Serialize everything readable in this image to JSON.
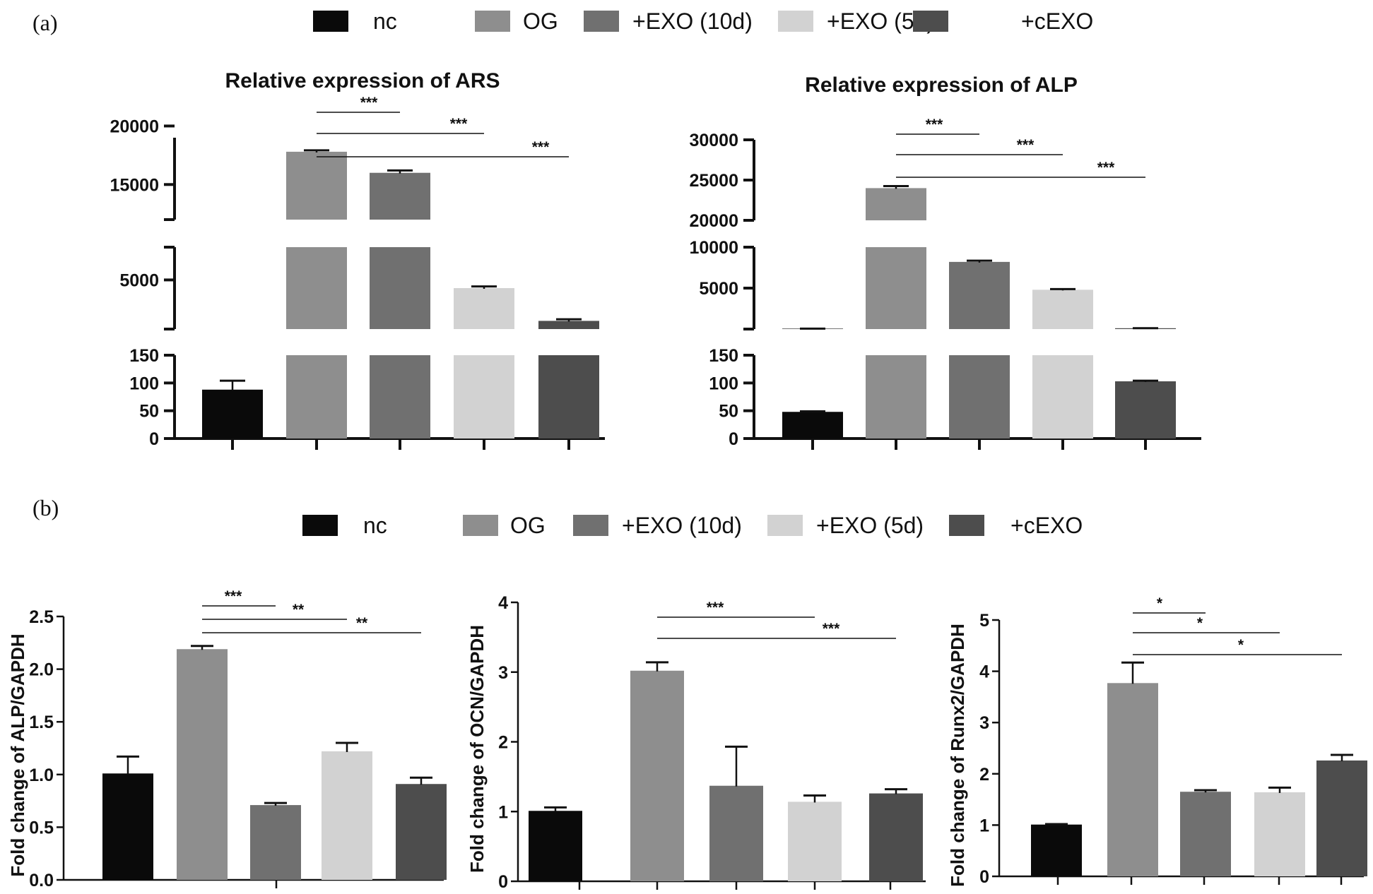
{
  "figure": {
    "panel_labels": [
      "(a)",
      "(b)"
    ],
    "legend_labels": [
      "nc",
      "OG",
      "+EXO (10d)",
      "+EXO (5d)",
      "+cEXO"
    ],
    "group_colors": [
      "#0a0a0a",
      "#8e8e8e",
      "#707070",
      "#d2d2d2",
      "#4d4d4d"
    ]
  },
  "chart_data": [
    {
      "type": "bar",
      "panel": "(a)",
      "title": "Relative expression of ARS",
      "xlabel": "",
      "ylabel": "",
      "broken_axis": true,
      "y_segments": [
        {
          "range": [
            0,
            150
          ],
          "ticks": [
            0,
            50,
            100,
            150
          ]
        },
        {
          "range": [
            2000,
            7000
          ],
          "ticks": [
            5000
          ]
        },
        {
          "range": [
            12000,
            19000
          ],
          "ticks": [
            15000,
            20000
          ]
        }
      ],
      "categories": [
        "nc",
        "OG",
        "+EXO (10d)",
        "+EXO (5d)",
        "+cEXO"
      ],
      "values": [
        88,
        17800,
        16000,
        4500,
        2500
      ],
      "errors": [
        16,
        120,
        200,
        100,
        100
      ],
      "significance": [
        {
          "from": "OG",
          "to": "+EXO (10d)",
          "label": "***"
        },
        {
          "from": "OG",
          "to": "+EXO (5d)",
          "label": "***"
        },
        {
          "from": "OG",
          "to": "+cEXO",
          "label": "***"
        }
      ]
    },
    {
      "type": "bar",
      "panel": "(a)",
      "title": "Relative expression of ALP",
      "xlabel": "",
      "ylabel": "",
      "broken_axis": true,
      "y_segments": [
        {
          "range": [
            0,
            150
          ],
          "ticks": [
            0,
            50,
            100,
            150
          ]
        },
        {
          "range": [
            0,
            10000
          ],
          "ticks": [
            5000,
            10000
          ]
        },
        {
          "range": [
            20000,
            30000
          ],
          "ticks": [
            20000,
            25000,
            30000
          ]
        }
      ],
      "categories": [
        "nc",
        "OG",
        "+EXO (10d)",
        "+EXO (5d)",
        "+cEXO"
      ],
      "values": [
        48,
        24000,
        8200,
        4800,
        103
      ],
      "errors": [
        1,
        250,
        150,
        80,
        1
      ],
      "significance": [
        {
          "from": "OG",
          "to": "+EXO (10d)",
          "label": "***"
        },
        {
          "from": "OG",
          "to": "+EXO (5d)",
          "label": "***"
        },
        {
          "from": "OG",
          "to": "+cEXO",
          "label": "***"
        }
      ]
    },
    {
      "type": "bar",
      "panel": "(b)",
      "title": "",
      "xlabel": "",
      "ylabel": "Fold change of ALP/GAPDH",
      "ylim": [
        0,
        2.5
      ],
      "yticks": [
        "0.0",
        "0.5",
        "1.0",
        "1.5",
        "2.0",
        "2.5"
      ],
      "categories": [
        "nc",
        "OG",
        "+EXO (10d)",
        "+EXO (5d)",
        "+cEXO"
      ],
      "values": [
        1.01,
        2.19,
        0.71,
        1.22,
        0.91
      ],
      "errors": [
        0.16,
        0.03,
        0.02,
        0.08,
        0.06
      ],
      "significance": [
        {
          "from": "OG",
          "to": "+EXO (10d)",
          "label": "***"
        },
        {
          "from": "OG",
          "to": "+EXO (5d)",
          "label": "**"
        },
        {
          "from": "OG",
          "to": "+cEXO",
          "label": "**"
        }
      ]
    },
    {
      "type": "bar",
      "panel": "(b)",
      "title": "",
      "xlabel": "",
      "ylabel": "Fold change of OCN/GAPDH",
      "ylim": [
        0,
        4
      ],
      "yticks": [
        "0",
        "1",
        "2",
        "3",
        "4"
      ],
      "categories": [
        "nc",
        "OG",
        "+EXO (10d)",
        "+EXO (5d)",
        "+cEXO"
      ],
      "values": [
        1.01,
        3.02,
        1.37,
        1.14,
        1.26
      ],
      "errors": [
        0.05,
        0.12,
        0.56,
        0.09,
        0.06
      ],
      "significance": [
        {
          "from": "OG",
          "to": "+EXO (5d)",
          "label": "***"
        },
        {
          "from": "OG",
          "to": "+cEXO",
          "label": "***"
        }
      ]
    },
    {
      "type": "bar",
      "panel": "(b)",
      "title": "",
      "xlabel": "",
      "ylabel": "Fold change of Runx2/GAPDH",
      "ylim": [
        0,
        5
      ],
      "yticks": [
        "0",
        "1",
        "2",
        "3",
        "4",
        "5"
      ],
      "categories": [
        "nc",
        "OG",
        "+EXO (10d)",
        "+EXO (5d)",
        "+cEXO"
      ],
      "values": [
        1.01,
        3.77,
        1.65,
        1.64,
        2.26
      ],
      "errors": [
        0.01,
        0.4,
        0.03,
        0.09,
        0.11
      ],
      "significance": [
        {
          "from": "OG",
          "to": "+EXO (10d)",
          "label": "*"
        },
        {
          "from": "OG",
          "to": "+EXO (5d)",
          "label": "*"
        },
        {
          "from": "OG",
          "to": "+cEXO",
          "label": "*"
        }
      ]
    }
  ]
}
